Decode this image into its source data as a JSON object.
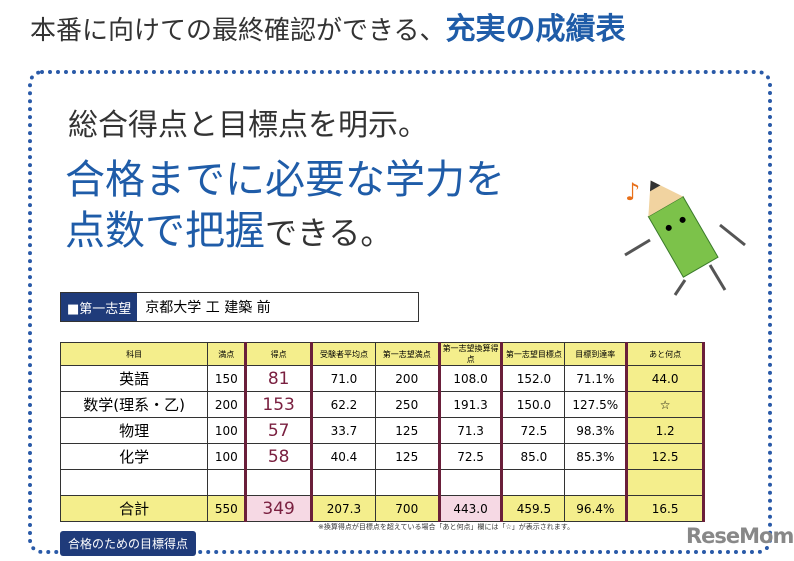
{
  "title": {
    "main": "本番に向けての最終確認ができる、",
    "emph": "充実の成績表"
  },
  "headline": {
    "line1": "総合得点と目標点を明示。",
    "line2": "合格までに必要な学力を",
    "line3a": "点数で把握",
    "line3b": "できる。"
  },
  "goal": {
    "label": "■第一志望",
    "value": "京都大学 工 建築 前"
  },
  "table": {
    "headers": [
      "科目",
      "満点",
      "得点",
      "受験者平均点",
      "第一志望満点",
      "第一志望換算得点",
      "第一志望目標点",
      "目標到達率",
      "あと何点"
    ],
    "rows": [
      [
        "英語",
        "150",
        "81",
        "71.0",
        "200",
        "108.0",
        "152.0",
        "71.1%",
        "44.0"
      ],
      [
        "数学(理系・乙)",
        "200",
        "153",
        "62.2",
        "250",
        "191.3",
        "150.0",
        "127.5%",
        "☆"
      ],
      [
        "物理",
        "100",
        "57",
        "33.7",
        "125",
        "71.3",
        "72.5",
        "98.3%",
        "1.2"
      ],
      [
        "化学",
        "100",
        "58",
        "40.4",
        "125",
        "72.5",
        "85.0",
        "85.3%",
        "12.5"
      ]
    ],
    "total": [
      "合計",
      "550",
      "349",
      "207.3",
      "700",
      "443.0",
      "459.5",
      "96.4%",
      "16.5"
    ]
  },
  "note": "※換算得点が目標点を超えている場合「あと何点」欄には「☆」が表示されます。",
  "button": "合格のための目標得点",
  "logo": "ReseMom",
  "colors": {
    "accent": "#1f5ca8",
    "navy": "#1f3b7a",
    "yellow": "#f4ee8c",
    "pink": "#f6d9e4"
  }
}
